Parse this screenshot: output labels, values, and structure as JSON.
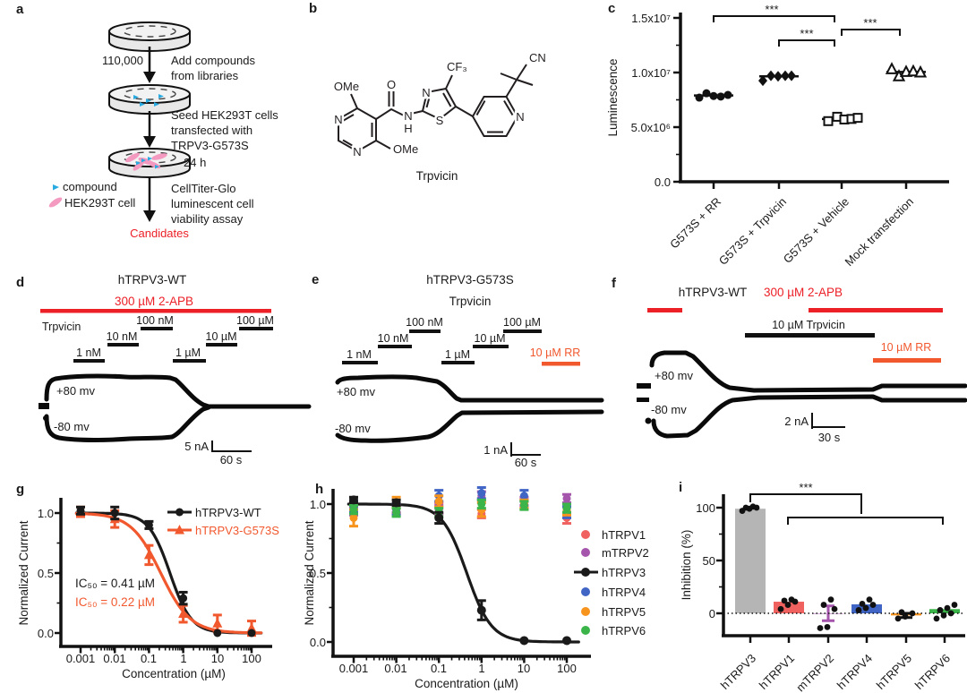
{
  "figure": {
    "panel_labels": [
      "a",
      "b",
      "c",
      "d",
      "e",
      "f",
      "g",
      "h",
      "i"
    ]
  },
  "colors": {
    "red_agonist": "#EC2027",
    "orange_blocker": "#F1582E",
    "compound_blue": "#29ABE2",
    "cell_pink": "#F49AC1",
    "trpv1": "#F0625F",
    "trpv2": "#A556AC",
    "trpv3": "#1a1a1a",
    "trpv4": "#4065C4",
    "trpv5": "#F7941E",
    "trpv6": "#3BB54A",
    "bar_gray": "#B5B5B5"
  },
  "panel_a": {
    "cell_count": "110,000",
    "step1_line1": "Add compounds",
    "step1_line2": "from libraries",
    "step2_line1": "Seed HEK293T cells",
    "step2_line2": "transfected with",
    "step2_line3": "TRPV3-G573S",
    "incubation": "24 h",
    "step3_line1": "CellTiter-Glo",
    "step3_line2": "luminescent cell",
    "step3_line3": "viability assay",
    "legend_compound": "compound",
    "legend_cell": "HEK293T cell",
    "result": "Candidates"
  },
  "panel_b": {
    "compound_name": "Trpvicin",
    "atoms": {
      "ome_top": "OMe",
      "o": "O",
      "n_ring_left": "N",
      "n_ring_bottom": "N",
      "ome_bottom": "OMe",
      "n_amide": "N",
      "h_amide": "H",
      "n_thiazole": "N",
      "s_thiazole": "S",
      "cf3": "CF₃",
      "n_pyridine": "N",
      "cn": "CN"
    }
  },
  "panel_d": {
    "title": "hTRPV3-WT",
    "agonist": "300 µM 2-APB",
    "drug": "Trpvicin",
    "concentrations": [
      "1 nM",
      "10 nM",
      "100 nM",
      "1 µM",
      "10 µM",
      "100 µM"
    ],
    "v_pos": "+80 mv",
    "v_neg": "-80 mv",
    "scale_current": "5 nA",
    "scale_time": "60 s"
  },
  "panel_e": {
    "title": "hTRPV3-G573S",
    "drug": "Trpvicin",
    "concentrations": [
      "1 nM",
      "10 nM",
      "100 nM",
      "1 µM",
      "10 µM",
      "100 µM"
    ],
    "blocker": "10 µM RR",
    "v_pos": "+80 mv",
    "v_neg": "-80 mv",
    "scale_current": "1 nA",
    "scale_time": "60 s"
  },
  "panel_f": {
    "title": "hTRPV3-WT",
    "agonist": "300 µM 2-APB",
    "drug": "10 µM Trpvicin",
    "blocker": "10 µM RR",
    "v_pos": "+80 mv",
    "v_neg": "-80 mv",
    "scale_current": "2 nA",
    "scale_time": "30 s"
  },
  "chart_data": {
    "c": {
      "type": "scatter",
      "ylabel": "Luminescence",
      "ytick_labels": [
        "0.0",
        "5.0x10⁶",
        "1.0x10⁷",
        "1.5x10⁷"
      ],
      "ymax": 15000000,
      "grid": false,
      "groups": [
        {
          "label": "G573S + RR",
          "marker": "circle",
          "fill": "filled",
          "mean": 7900000,
          "points": [
            7700000,
            8100000,
            7850000,
            7800000,
            7950000
          ]
        },
        {
          "label": "G573S + Trpvicin",
          "marker": "diamond",
          "fill": "filled",
          "mean": 9650000,
          "points": [
            9250000,
            9700000,
            9650000,
            9700000,
            9700000
          ]
        },
        {
          "label": "G573S + Vehicle",
          "marker": "square",
          "fill": "open",
          "mean": 5750000,
          "points": [
            5550000,
            5950000,
            5700000,
            5750000,
            5850000
          ]
        },
        {
          "label": "Mock transfection",
          "marker": "triangle",
          "fill": "open",
          "mean": 10050000,
          "points": [
            10300000,
            9650000,
            10050000,
            10100000,
            10000000
          ]
        }
      ],
      "significance": [
        {
          "comparison": "G573S + RR vs G573S + Vehicle",
          "label": "***"
        },
        {
          "comparison": "G573S + Trpvicin vs G573S + Vehicle",
          "label": "***"
        },
        {
          "comparison": "G573S + Vehicle vs Mock transfection",
          "label": "***"
        }
      ]
    },
    "g": {
      "type": "line",
      "xlabel": "Concentration (µM)",
      "ylabel": "Normalized Current",
      "xscale": "log",
      "xtick_labels": [
        "0.001",
        "0.01",
        "0.1",
        "1",
        "10",
        "100"
      ],
      "ytick_labels": [
        "0.0",
        "0.5",
        "1.0"
      ],
      "x_values": [
        0.001,
        0.01,
        0.1,
        1,
        10,
        100
      ],
      "series": [
        {
          "name": "hTRPV3-WT",
          "color": "#1a1a1a",
          "marker": "circle",
          "ic50_label": "IC₅₀ = 0.41 µM",
          "ic50_um": 0.41,
          "hill": 1.4,
          "y": [
            1.02,
            1.0,
            0.9,
            0.29,
            0.0,
            0.0
          ],
          "err": [
            0.03,
            0.05,
            0.03,
            0.05,
            0.01,
            0.01
          ]
        },
        {
          "name": "hTRPV3-G573S",
          "color": "#F1582E",
          "marker": "triangle",
          "ic50_label": "IC₅₀ = 0.22 µM",
          "ic50_um": 0.22,
          "hill": 1.0,
          "y": [
            1.01,
            0.95,
            0.65,
            0.16,
            0.08,
            0.04
          ],
          "err": [
            0.04,
            0.07,
            0.08,
            0.07,
            0.07,
            0.06
          ]
        }
      ]
    },
    "h": {
      "type": "line",
      "xlabel": "Concentration (µM)",
      "ylabel": "Normalized Current",
      "xscale": "log",
      "xtick_labels": [
        "0.001",
        "0.01",
        "0.1",
        "1",
        "10",
        "100"
      ],
      "ytick_labels": [
        "0.0",
        "0.5",
        "1.0"
      ],
      "x_values": [
        0.001,
        0.01,
        0.1,
        1,
        10,
        100
      ],
      "series": [
        {
          "name": "hTRPV1",
          "color": "#F0625F",
          "marker": "circle",
          "y": [
            0.97,
            0.96,
            0.97,
            0.93,
            1.0,
            0.9
          ],
          "err": [
            0.04,
            0.03,
            0.04,
            0.03,
            0.03,
            0.04
          ]
        },
        {
          "name": "mTRPV2",
          "color": "#A556AC",
          "marker": "circle",
          "y": [
            0.95,
            0.97,
            0.96,
            1.06,
            1.02,
            1.04
          ],
          "err": [
            0.03,
            0.03,
            0.03,
            0.03,
            0.03,
            0.03
          ]
        },
        {
          "name": "hTRPV3",
          "color": "#1a1a1a",
          "marker": "circle",
          "ic50_um": 0.45,
          "hill": 1.5,
          "y": [
            1.03,
            1.01,
            0.9,
            0.23,
            0.01,
            0.01
          ],
          "err": [
            0.02,
            0.02,
            0.04,
            0.07,
            0.01,
            0.01
          ]
        },
        {
          "name": "hTRPV4",
          "color": "#4065C4",
          "marker": "circle",
          "y": [
            0.98,
            0.96,
            1.06,
            1.08,
            1.06,
            0.94
          ],
          "err": [
            0.04,
            0.04,
            0.04,
            0.04,
            0.04,
            0.04
          ]
        },
        {
          "name": "hTRPV5",
          "color": "#F7941E",
          "marker": "circle",
          "y": [
            0.9,
            1.01,
            1.02,
            0.96,
            1.0,
            0.96
          ],
          "err": [
            0.06,
            0.04,
            0.04,
            0.05,
            0.03,
            0.04
          ]
        },
        {
          "name": "hTRPV6",
          "color": "#3BB54A",
          "marker": "circle",
          "y": [
            0.96,
            0.94,
            0.94,
            1.0,
            0.99,
            0.97
          ],
          "err": [
            0.03,
            0.03,
            0.03,
            0.03,
            0.03,
            0.03
          ]
        }
      ]
    },
    "i": {
      "type": "bar",
      "ylabel": "Inhibition (%)",
      "ytick_labels": [
        "0",
        "50",
        "100"
      ],
      "categories": [
        "hTRPV3",
        "hTRPV1",
        "mTRPV2",
        "hTRPV4",
        "hTRPV5",
        "hTRPV6"
      ],
      "values": [
        99,
        11,
        0,
        8.5,
        -2,
        4
      ],
      "bar_colors": [
        "#B5B5B5",
        "#F0625F",
        "#A556AC",
        "#4065C4",
        "#F7941E",
        "#3BB54A"
      ],
      "errors": [
        0,
        0,
        7,
        0,
        2,
        0
      ],
      "dots": [
        [
          97,
          99,
          100,
          100,
          101
        ],
        [
          4,
          8,
          11,
          12,
          13
        ],
        [
          -14,
          -13,
          4,
          8,
          13
        ],
        [
          3,
          5,
          8,
          9,
          13
        ],
        [
          -5,
          -3,
          0,
          1
        ],
        [
          -5,
          -2,
          0,
          3,
          5,
          8
        ]
      ],
      "significance": {
        "label": "***",
        "comparison": "hTRPV3 vs all others"
      }
    }
  }
}
